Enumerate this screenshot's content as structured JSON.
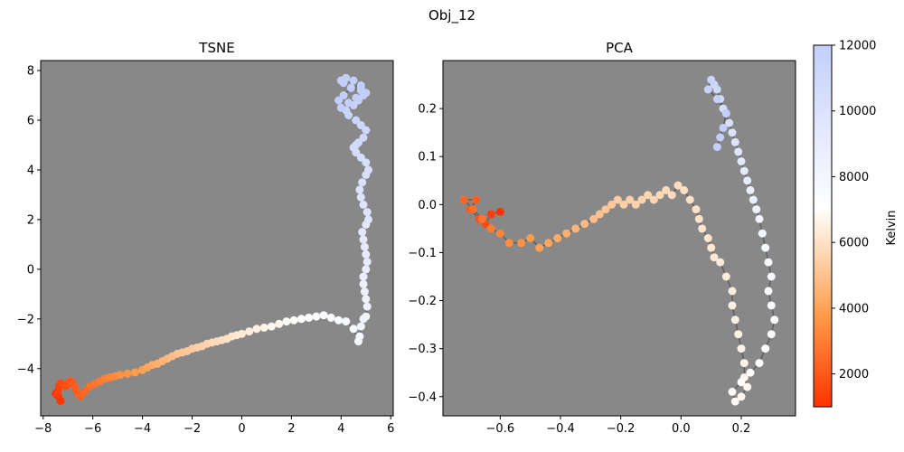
{
  "suptitle": "Obj_12",
  "colorbar": {
    "label": "Kelvin",
    "min": 1000,
    "max": 12000,
    "ticks": [
      2000,
      4000,
      6000,
      8000,
      10000,
      12000
    ],
    "tick_labels": [
      "2000",
      "4000",
      "6000",
      "8000",
      "10000",
      "12000"
    ]
  },
  "colors": {
    "axes_background": "#888888",
    "trajectory_line": "#555555",
    "cmap_low": "#ff3300",
    "cmap_mid": "#ffffff",
    "cmap_high": "#c3cffb"
  },
  "chart_data": [
    {
      "type": "scatter",
      "title": "TSNE",
      "xlim": [
        -8.1,
        6.1
      ],
      "ylim": [
        -5.9,
        8.4
      ],
      "xticks": [
        -8,
        -6,
        -4,
        -2,
        0,
        2,
        4,
        6
      ],
      "xtick_labels": [
        "−8",
        "−6",
        "−4",
        "−2",
        "0",
        "2",
        "4",
        "6"
      ],
      "yticks": [
        -4,
        -2,
        0,
        2,
        4,
        6,
        8
      ],
      "ytick_labels": [
        "−4",
        "−2",
        "0",
        "2",
        "4",
        "6",
        "8"
      ],
      "x": [
        -7.4,
        -7.3,
        -7.5,
        -7.35,
        -7.4,
        -7.3,
        -7.2,
        -7.1,
        -7.0,
        -6.9,
        -6.8,
        -6.7,
        -6.6,
        -6.5,
        -6.3,
        -6.1,
        -5.9,
        -5.7,
        -5.5,
        -5.3,
        -5.1,
        -4.9,
        -4.6,
        -4.3,
        -4.0,
        -3.8,
        -3.6,
        -3.4,
        -3.2,
        -3.0,
        -2.8,
        -2.6,
        -2.4,
        -2.2,
        -2.0,
        -1.8,
        -1.6,
        -1.4,
        -1.2,
        -1.0,
        -0.8,
        -0.6,
        -0.4,
        -0.2,
        0.0,
        0.3,
        0.6,
        0.9,
        1.2,
        1.5,
        1.8,
        2.1,
        2.4,
        2.7,
        3.0,
        3.3,
        3.6,
        3.9,
        4.2,
        4.5,
        4.7,
        4.75,
        4.8,
        4.9,
        5.0,
        5.05,
        5.0,
        4.95,
        4.9,
        4.9,
        5.0,
        5.05,
        5.0,
        4.95,
        4.9,
        4.85,
        5.0,
        5.1,
        5.05,
        4.9,
        4.8,
        4.75,
        4.85,
        5.0,
        5.1,
        5.0,
        4.8,
        4.6,
        4.5,
        4.6,
        4.7,
        4.9,
        5.0,
        4.8,
        4.6,
        4.3,
        4.2,
        4.5,
        4.7,
        4.9,
        4.8,
        4.4,
        4.1,
        4.0,
        4.2,
        4.5,
        4.8,
        5.0,
        4.8,
        4.4,
        4.1,
        3.9,
        4.0,
        4.3,
        4.6
      ],
      "y": [
        -5.1,
        -5.3,
        -5.0,
        -4.7,
        -4.9,
        -4.6,
        -4.65,
        -4.7,
        -4.6,
        -4.5,
        -4.6,
        -4.8,
        -5.0,
        -5.1,
        -4.9,
        -4.7,
        -4.6,
        -4.5,
        -4.4,
        -4.35,
        -4.3,
        -4.25,
        -4.2,
        -4.15,
        -4.05,
        -3.95,
        -3.85,
        -3.8,
        -3.7,
        -3.6,
        -3.5,
        -3.4,
        -3.35,
        -3.3,
        -3.2,
        -3.15,
        -3.1,
        -3.0,
        -2.95,
        -2.9,
        -2.85,
        -2.8,
        -2.7,
        -2.65,
        -2.6,
        -2.5,
        -2.4,
        -2.35,
        -2.3,
        -2.2,
        -2.1,
        -2.05,
        -2.0,
        -1.95,
        -1.9,
        -1.85,
        -1.95,
        -2.05,
        -2.1,
        -2.4,
        -2.9,
        -2.7,
        -2.3,
        -2.0,
        -1.9,
        -1.5,
        -1.2,
        -0.9,
        -0.6,
        -0.3,
        0.0,
        0.3,
        0.6,
        0.9,
        1.2,
        1.5,
        1.8,
        2.0,
        2.3,
        2.6,
        2.9,
        3.2,
        3.5,
        3.8,
        4.0,
        4.3,
        4.5,
        4.7,
        4.9,
        5.0,
        5.1,
        5.3,
        5.6,
        5.8,
        6.0,
        6.2,
        6.4,
        6.6,
        6.8,
        7.0,
        7.2,
        7.3,
        7.5,
        7.6,
        7.7,
        7.6,
        7.3,
        7.1,
        7.4,
        7.3,
        7.0,
        6.8,
        6.5,
        6.7,
        6.9
      ],
      "temps": [
        1000,
        1100,
        1200,
        1300,
        1400,
        1500,
        1600,
        1700,
        1800,
        1900,
        2000,
        2100,
        2200,
        2300,
        2450,
        2600,
        2750,
        2900,
        3050,
        3200,
        3350,
        3500,
        3650,
        3800,
        3950,
        4100,
        4250,
        4400,
        4550,
        4700,
        4850,
        5000,
        5100,
        5200,
        5300,
        5400,
        5500,
        5600,
        5700,
        5800,
        5900,
        6000,
        6100,
        6200,
        6300,
        6400,
        6500,
        6600,
        6700,
        6800,
        6900,
        7000,
        7100,
        7200,
        7300,
        7400,
        7500,
        7600,
        7700,
        7800,
        7900,
        8000,
        8100,
        8200,
        8300,
        8400,
        8500,
        8600,
        8700,
        8800,
        8900,
        9000,
        9100,
        9200,
        9300,
        9400,
        9500,
        9600,
        9700,
        9800,
        9900,
        10000,
        10100,
        10200,
        10300,
        10400,
        10500,
        10600,
        10700,
        10800,
        10900,
        11000,
        11100,
        11200,
        11300,
        11400,
        11500,
        11600,
        11700,
        11800,
        11850,
        11900,
        11950,
        12000,
        12000,
        12000,
        12000,
        12000,
        12000,
        12000,
        12000,
        12000,
        12000,
        12000,
        12000
      ]
    },
    {
      "type": "scatter",
      "title": "PCA",
      "xlim": [
        -0.79,
        0.38
      ],
      "ylim": [
        -0.44,
        0.3
      ],
      "xticks": [
        -0.6,
        -0.4,
        -0.2,
        0.0,
        0.2
      ],
      "xtick_labels": [
        "−0.6",
        "−0.4",
        "−0.2",
        "0.0",
        "0.2"
      ],
      "yticks": [
        -0.4,
        -0.3,
        -0.2,
        -0.1,
        0.0,
        0.1,
        0.2
      ],
      "ytick_labels": [
        "−0.4",
        "−0.3",
        "−0.2",
        "−0.1",
        "0.0",
        "0.1",
        "0.2"
      ],
      "x": [
        -0.6,
        -0.63,
        -0.65,
        -0.67,
        -0.7,
        -0.68,
        -0.72,
        -0.69,
        -0.66,
        -0.63,
        -0.6,
        -0.57,
        -0.53,
        -0.5,
        -0.47,
        -0.44,
        -0.41,
        -0.38,
        -0.35,
        -0.32,
        -0.29,
        -0.27,
        -0.25,
        -0.23,
        -0.21,
        -0.19,
        -0.17,
        -0.15,
        -0.13,
        -0.11,
        -0.09,
        -0.07,
        -0.05,
        -0.03,
        -0.01,
        0.01,
        0.03,
        0.05,
        0.06,
        0.07,
        0.09,
        0.1,
        0.11,
        0.13,
        0.15,
        0.17,
        0.17,
        0.18,
        0.19,
        0.2,
        0.21,
        0.21,
        0.22,
        0.2,
        0.18,
        0.17,
        0.2,
        0.23,
        0.26,
        0.28,
        0.3,
        0.31,
        0.3,
        0.29,
        0.3,
        0.29,
        0.28,
        0.27,
        0.26,
        0.25,
        0.24,
        0.23,
        0.22,
        0.21,
        0.2,
        0.19,
        0.18,
        0.17,
        0.16,
        0.15,
        0.14,
        0.13,
        0.12,
        0.11,
        0.1,
        0.09,
        0.12,
        0.15,
        0.14,
        0.13,
        0.12
      ],
      "y": [
        -0.015,
        -0.02,
        -0.04,
        -0.03,
        -0.01,
        0.01,
        0.01,
        -0.01,
        -0.03,
        -0.05,
        -0.06,
        -0.08,
        -0.08,
        -0.07,
        -0.09,
        -0.08,
        -0.07,
        -0.06,
        -0.05,
        -0.04,
        -0.03,
        -0.02,
        -0.01,
        0.0,
        0.01,
        0.0,
        0.01,
        0.0,
        0.01,
        0.02,
        0.01,
        0.02,
        0.03,
        0.02,
        0.04,
        0.03,
        0.01,
        -0.01,
        -0.03,
        -0.05,
        -0.07,
        -0.09,
        -0.11,
        -0.12,
        -0.15,
        -0.18,
        -0.21,
        -0.24,
        -0.27,
        -0.3,
        -0.33,
        -0.36,
        -0.38,
        -0.4,
        -0.41,
        -0.39,
        -0.37,
        -0.35,
        -0.33,
        -0.3,
        -0.27,
        -0.24,
        -0.21,
        -0.18,
        -0.15,
        -0.12,
        -0.09,
        -0.06,
        -0.03,
        -0.01,
        0.01,
        0.03,
        0.05,
        0.07,
        0.09,
        0.11,
        0.13,
        0.15,
        0.17,
        0.19,
        0.2,
        0.22,
        0.24,
        0.25,
        0.26,
        0.24,
        0.22,
        0.19,
        0.16,
        0.14,
        0.12
      ],
      "temps": [
        1000,
        1300,
        1600,
        1800,
        2000,
        2200,
        2400,
        2600,
        2800,
        3000,
        3200,
        3400,
        3600,
        3800,
        4000,
        4150,
        4300,
        4450,
        4600,
        4750,
        4900,
        5000,
        5100,
        5200,
        5300,
        5400,
        5450,
        5500,
        5550,
        5600,
        5650,
        5700,
        5750,
        5800,
        5850,
        5900,
        5950,
        6000,
        6050,
        6100,
        6150,
        6200,
        6250,
        6300,
        6350,
        6400,
        6450,
        6500,
        6550,
        6600,
        6650,
        6700,
        6750,
        6800,
        6850,
        6900,
        6950,
        7000,
        7100,
        7200,
        7300,
        7400,
        7500,
        7600,
        7700,
        7800,
        7900,
        8000,
        8200,
        8400,
        8600,
        8800,
        9000,
        9200,
        9400,
        9600,
        9800,
        10000,
        10200,
        10400,
        10600,
        10800,
        11000,
        11200,
        11400,
        11600,
        11800,
        12000,
        12000,
        12000,
        12000
      ]
    }
  ]
}
